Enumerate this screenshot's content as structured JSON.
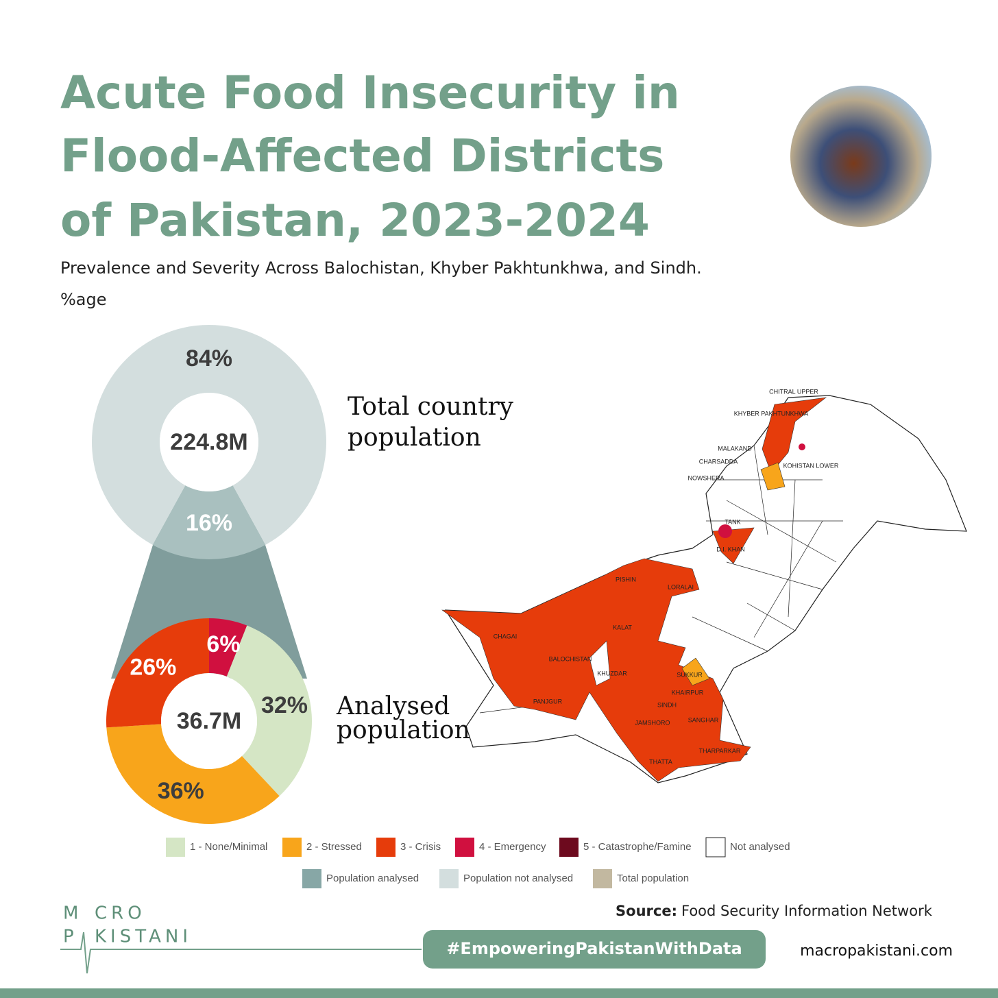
{
  "header": {
    "title_lines": [
      "Acute Food Insecurity in",
      "Flood-Affected Districts",
      "of Pakistan, 2023-2024"
    ],
    "subtitle": "Prevalence and Severity Across Balochistan, Khyber Pakhtunkhwa, and Sindh.",
    "unit": "%age"
  },
  "chart_data": [
    {
      "type": "donut",
      "center_label": "224.8M",
      "caption_lines": [
        "Total country",
        "population"
      ],
      "categories": [
        "Population analysed",
        "Population not analysed"
      ],
      "values": [
        16,
        84
      ],
      "value_labels": [
        "16%",
        "84%"
      ],
      "colors": [
        "#a9c0bf",
        "#d3dede"
      ]
    },
    {
      "type": "donut",
      "center_label": "36.7M",
      "caption_lines": [
        "Analysed",
        "population"
      ],
      "categories": [
        "1 - None/Minimal",
        "2 - Stressed",
        "3 - Crisis",
        "4 - Emergency"
      ],
      "values": [
        32,
        36,
        26,
        6
      ],
      "value_labels": [
        "32%",
        "36%",
        "26%",
        "6%"
      ],
      "colors": [
        "#d5e6c5",
        "#f8a51b",
        "#e63c0b",
        "#d0103f"
      ]
    }
  ],
  "legend_extra": [
    {
      "name": "5 - Catastrophe/Famine",
      "color": "#6d0a1e"
    },
    {
      "name": "Not analysed",
      "color": "#ffffff"
    },
    {
      "name": "Total population",
      "color": "#c2b8a0"
    }
  ],
  "map": {
    "labels": [
      "CHITRAL UPPER",
      "KHYBER PAKHTUNKHWA",
      "MALAKAND",
      "CHARSADDA",
      "NOWSHERA",
      "KOHISTAN LOWER",
      "TANK",
      "D.I. KHAN",
      "PISHIN",
      "LORALAI",
      "CHAGAI",
      "KALAT",
      "BALOCHISTAN",
      "KHUZDAR",
      "PANJGUR",
      "SUKKUR",
      "KHAIRPUR",
      "SINDH",
      "JAMSHORO",
      "SANGHAR",
      "THARPARKAR",
      "THATTA"
    ]
  },
  "footer": {
    "logo": [
      "M",
      "CRO",
      "P",
      "KISTANI"
    ],
    "source_label": "Source:",
    "source": "Food Security Information Network",
    "hashtag": "#EmpoweringPakistanWithData",
    "website": "macropakistani.com"
  }
}
